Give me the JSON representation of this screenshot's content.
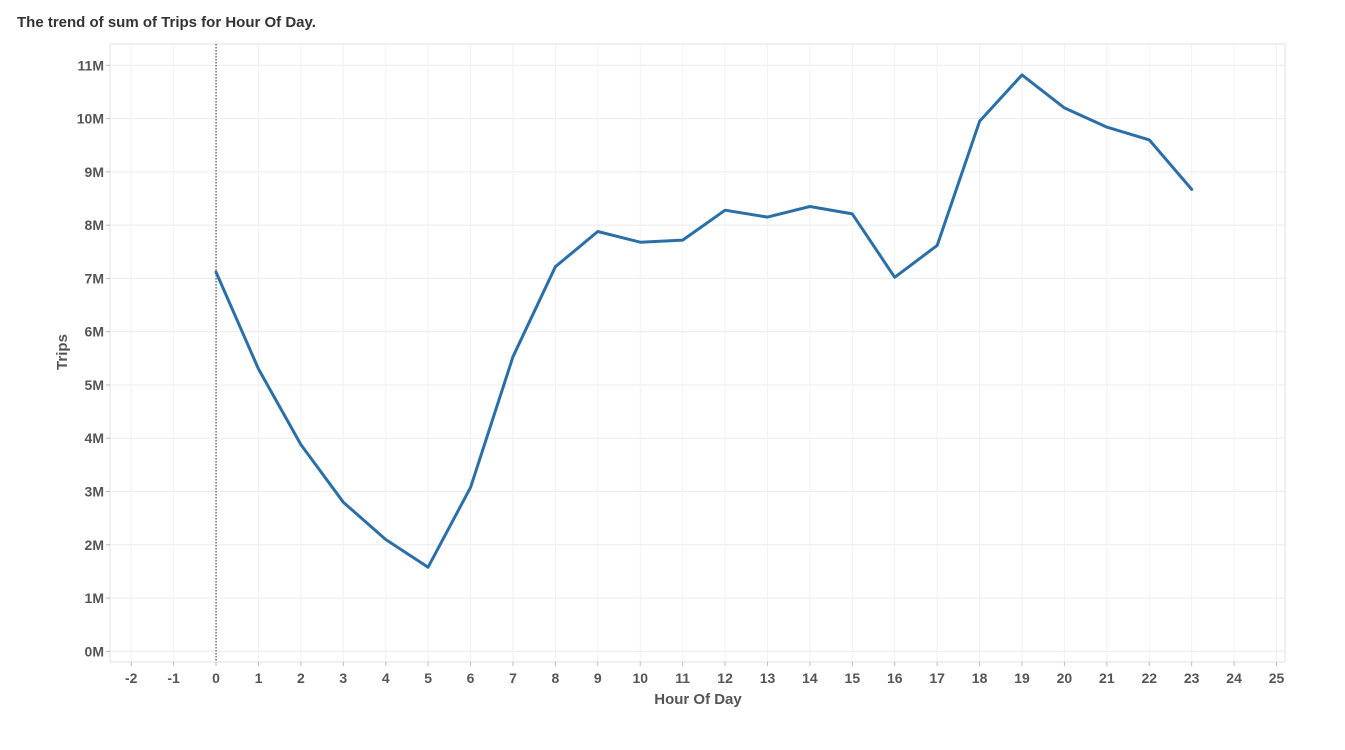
{
  "chart_data": {
    "type": "line",
    "title": "The trend of sum of Trips for Hour Of Day.",
    "xlabel": "Hour Of Day",
    "ylabel": "Trips",
    "xlim": [
      -2.5,
      25.2
    ],
    "ylim": [
      -0.2,
      11.4
    ],
    "x_ticks": [
      -2,
      -1,
      0,
      1,
      2,
      3,
      4,
      5,
      6,
      7,
      8,
      9,
      10,
      11,
      12,
      13,
      14,
      15,
      16,
      17,
      18,
      19,
      20,
      21,
      22,
      23,
      24,
      25
    ],
    "y_ticks": [
      0,
      1,
      2,
      3,
      4,
      5,
      6,
      7,
      8,
      9,
      10,
      11
    ],
    "y_tick_labels": [
      "0M",
      "1M",
      "2M",
      "3M",
      "4M",
      "5M",
      "6M",
      "7M",
      "8M",
      "9M",
      "10M",
      "11M"
    ],
    "y_unit": "M",
    "grid": true,
    "reference_line_x": 0,
    "series": [
      {
        "color": "#2b6fa8",
        "x": [
          0,
          1,
          2,
          3,
          4,
          5,
          6,
          7,
          8,
          9,
          10,
          11,
          12,
          13,
          14,
          15,
          16,
          17,
          18,
          19,
          20,
          21,
          22,
          23
        ],
        "y": [
          7.12,
          5.3,
          3.88,
          2.8,
          2.1,
          1.58,
          3.08,
          5.53,
          7.22,
          7.88,
          7.68,
          7.72,
          8.28,
          8.15,
          8.35,
          8.21,
          7.02,
          7.62,
          9.95,
          10.82,
          10.2,
          9.84,
          9.6,
          8.67
        ]
      }
    ]
  }
}
